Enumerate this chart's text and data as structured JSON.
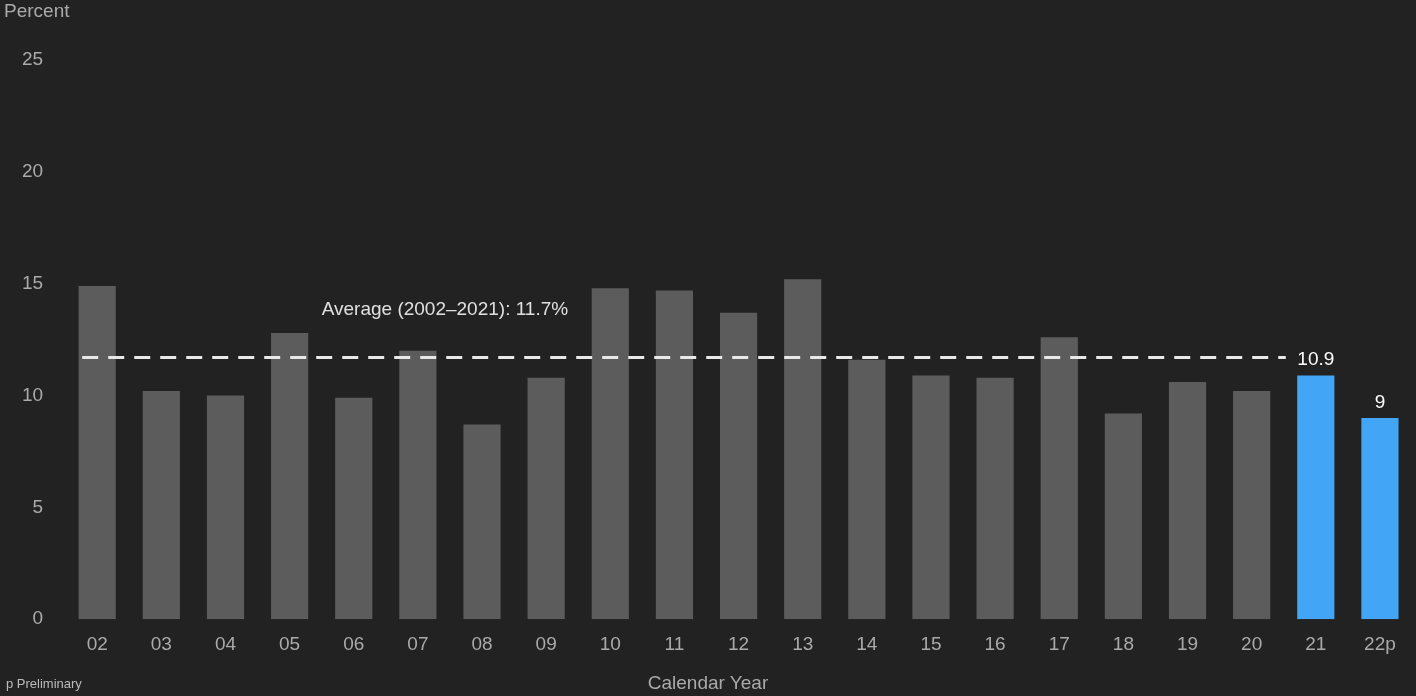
{
  "chart_data": {
    "type": "bar",
    "ylabel": "Percent",
    "xlabel": "Calendar Year",
    "categories": [
      "02",
      "03",
      "04",
      "05",
      "06",
      "07",
      "08",
      "09",
      "10",
      "11",
      "12",
      "13",
      "14",
      "15",
      "16",
      "17",
      "18",
      "19",
      "20",
      "21",
      "22p"
    ],
    "values": [
      14.9,
      10.2,
      10.0,
      12.8,
      9.9,
      12.0,
      8.7,
      10.8,
      14.8,
      14.7,
      13.7,
      15.2,
      11.6,
      10.9,
      10.8,
      12.6,
      9.2,
      10.6,
      10.2,
      10.9,
      9
    ],
    "colors": [
      "#5c5c5c",
      "#5c5c5c",
      "#5c5c5c",
      "#5c5c5c",
      "#5c5c5c",
      "#5c5c5c",
      "#5c5c5c",
      "#5c5c5c",
      "#5c5c5c",
      "#5c5c5c",
      "#5c5c5c",
      "#5c5c5c",
      "#5c5c5c",
      "#5c5c5c",
      "#5c5c5c",
      "#5c5c5c",
      "#5c5c5c",
      "#5c5c5c",
      "#5c5c5c",
      "#42a5f5",
      "#42a5f5"
    ],
    "value_labels": [
      null,
      null,
      null,
      null,
      null,
      null,
      null,
      null,
      null,
      null,
      null,
      null,
      null,
      null,
      null,
      null,
      null,
      null,
      null,
      "10.9",
      "9"
    ],
    "ylim": [
      0,
      25
    ],
    "yticks": [
      0,
      5,
      10,
      15,
      20,
      25
    ],
    "grid": false,
    "legend": false,
    "ref_lines": [
      {
        "axis": "y",
        "value": 11.7,
        "label": "Average (2002–2021): 11.7%",
        "color": "#e8e8e8",
        "line_style": "dashed"
      }
    ],
    "annotations": [
      "p Preliminary"
    ]
  }
}
